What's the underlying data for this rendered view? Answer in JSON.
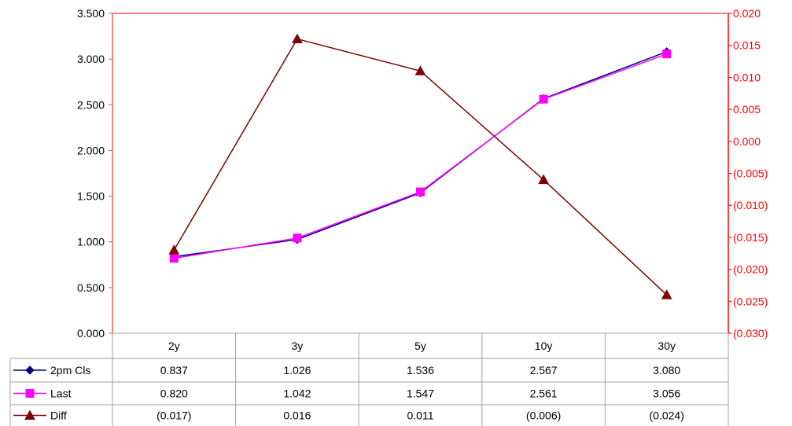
{
  "chart_data": {
    "type": "line",
    "categories": [
      "2y",
      "3y",
      "5y",
      "10y",
      "30y"
    ],
    "y_left": {
      "ticks": [
        "0.000",
        "0.500",
        "1.000",
        "1.500",
        "2.000",
        "2.500",
        "3.000",
        "3.500"
      ],
      "ylim": [
        0,
        3.5
      ]
    },
    "y_right": {
      "ticks": [
        "(0.030)",
        "(0.025)",
        "(0.020)",
        "(0.015)",
        "(0.010)",
        "(0.005)",
        "0.000",
        "0.005",
        "0.010",
        "0.015",
        "0.020"
      ],
      "ylim": [
        -0.03,
        0.02
      ],
      "color": "#ff0000"
    },
    "grid": false,
    "legend": "data-table",
    "series": [
      {
        "name": "2pm Cls",
        "axis": "left",
        "color": "#000080",
        "marker": "diamond",
        "values": [
          0.837,
          1.026,
          1.536,
          2.567,
          3.08
        ],
        "labels": [
          "0.837",
          "1.026",
          "1.536",
          "2.567",
          "3.080"
        ]
      },
      {
        "name": "Last",
        "axis": "left",
        "color": "#ff00ff",
        "marker": "square",
        "values": [
          0.82,
          1.042,
          1.547,
          2.561,
          3.056
        ],
        "labels": [
          "0.820",
          "1.042",
          "1.547",
          "2.561",
          "3.056"
        ]
      },
      {
        "name": "Diff",
        "axis": "right",
        "color": "#800000",
        "marker": "triangle",
        "values": [
          -0.017,
          0.016,
          0.011,
          -0.006,
          -0.024
        ],
        "labels": [
          "(0.017)",
          "0.016",
          "0.011",
          "(0.006)",
          "(0.024)"
        ]
      }
    ]
  }
}
